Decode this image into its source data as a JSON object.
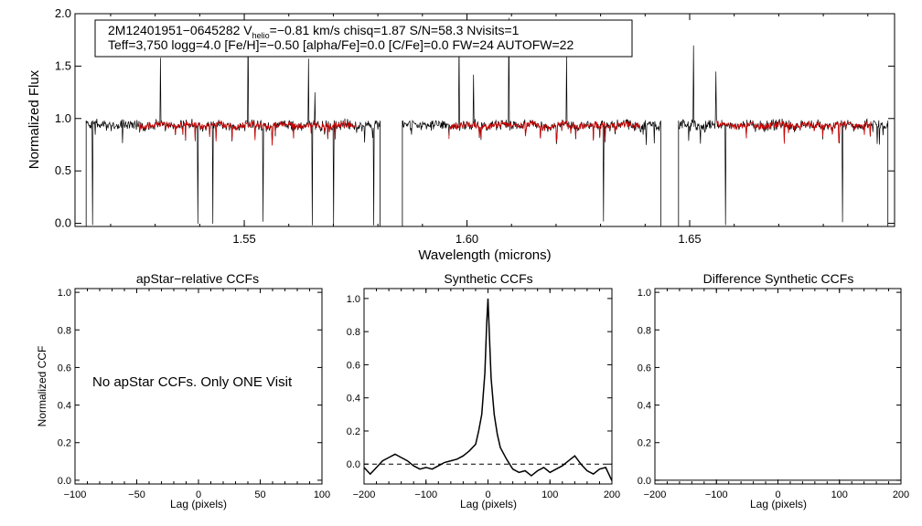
{
  "chart_data": [
    {
      "id": "spectrum",
      "type": "line",
      "ylabel": "Normalized Flux",
      "xlabel": "Wavelength (microns)",
      "xlim": [
        1.512,
        1.696
      ],
      "ylim": [
        -0.03,
        2.0
      ],
      "xticks": [
        1.55,
        1.6,
        1.65
      ],
      "xtick_labels": [
        "1.55",
        "1.60",
        "1.65"
      ],
      "yticks": [
        0.0,
        0.5,
        1.0,
        1.5,
        2.0
      ],
      "ytick_labels": [
        "0.0",
        "0.5",
        "1.0",
        "1.5",
        "2.0"
      ],
      "info_line1": {
        "prefix": "2M12401951−0645282  V",
        "sub": "helio",
        "suffix": "=−0.81 km/s  chisq=1.87  S/N=58.3  Nvisits=1"
      },
      "info_line2": "Teff=3,750 logg=4.0 [Fe/H]=−0.50 [alpha/Fe]=0.0 [C/Fe]=0.0 FW=24 AUTOFW=22",
      "chips": [
        [
          1.5145,
          1.5805
        ],
        [
          1.5855,
          1.6435
        ],
        [
          1.6475,
          1.6945
        ]
      ],
      "series": [
        {
          "name": "observed",
          "color": "#000000"
        },
        {
          "name": "model",
          "color": "#cc0000"
        }
      ]
    },
    {
      "id": "apstar",
      "type": "line",
      "title": "apStar−relative CCFs",
      "ylabel": "Normalized CCF",
      "xlabel": "Lag (pixels)",
      "xlim": [
        -100,
        100
      ],
      "ylim": [
        -0.02,
        1.02
      ],
      "xticks": [
        -100,
        -50,
        0,
        50,
        100
      ],
      "xtick_labels": [
        "−100",
        "−50",
        "0",
        "50",
        "100"
      ],
      "yticks": [
        0.0,
        0.2,
        0.4,
        0.6,
        0.8,
        1.0
      ],
      "ytick_labels": [
        "0.0",
        "0.2",
        "0.4",
        "0.6",
        "0.8",
        "1.0"
      ],
      "message": "No apStar CCFs.  Only ONE Visit"
    },
    {
      "id": "synthetic",
      "type": "line",
      "title": "Synthetic CCFs",
      "xlabel": "Lag (pixels)",
      "xlim": [
        -200,
        200
      ],
      "ylim": [
        -0.12,
        1.06
      ],
      "xticks": [
        -200,
        -100,
        0,
        100,
        200
      ],
      "xtick_labels": [
        "−200",
        "−100",
        "0",
        "100",
        "200"
      ],
      "yticks": [
        0.0,
        0.2,
        0.4,
        0.6,
        0.8,
        1.0
      ],
      "ytick_labels": [
        "0.0",
        "0.2",
        "0.4",
        "0.6",
        "0.8",
        "1.0"
      ],
      "zero_line": 0.0,
      "x": [
        -200,
        -190,
        -180,
        -170,
        -160,
        -150,
        -140,
        -130,
        -120,
        -110,
        -100,
        -90,
        -80,
        -70,
        -60,
        -50,
        -40,
        -30,
        -20,
        -15,
        -10,
        -5,
        -2,
        0,
        2,
        5,
        10,
        15,
        20,
        30,
        40,
        50,
        60,
        70,
        80,
        90,
        100,
        110,
        120,
        130,
        140,
        150,
        160,
        170,
        180,
        190,
        200
      ],
      "values": [
        -0.02,
        -0.06,
        -0.02,
        0.02,
        0.04,
        0.06,
        0.04,
        0.02,
        -0.01,
        -0.03,
        -0.02,
        -0.03,
        -0.01,
        0.01,
        0.02,
        0.03,
        0.05,
        0.08,
        0.12,
        0.2,
        0.3,
        0.55,
        0.85,
        1.0,
        0.8,
        0.52,
        0.3,
        0.18,
        0.1,
        0.03,
        -0.03,
        -0.05,
        -0.04,
        -0.07,
        -0.04,
        -0.02,
        -0.05,
        -0.03,
        -0.01,
        0.02,
        0.05,
        0.0,
        -0.04,
        -0.06,
        -0.03,
        -0.02,
        -0.1
      ]
    },
    {
      "id": "difference",
      "type": "line",
      "title": "Difference Synthetic CCFs",
      "xlabel": "Lag (pixels)",
      "xlim": [
        -200,
        200
      ],
      "ylim": [
        -0.02,
        1.02
      ],
      "xticks": [
        -200,
        -100,
        0,
        100,
        200
      ],
      "xtick_labels": [
        "−200",
        "−100",
        "0",
        "100",
        "200"
      ],
      "yticks": [
        0.0,
        0.2,
        0.4,
        0.6,
        0.8,
        1.0
      ],
      "ytick_labels": [
        "0.0",
        "0.2",
        "0.4",
        "0.6",
        "0.8",
        "1.0"
      ]
    }
  ]
}
